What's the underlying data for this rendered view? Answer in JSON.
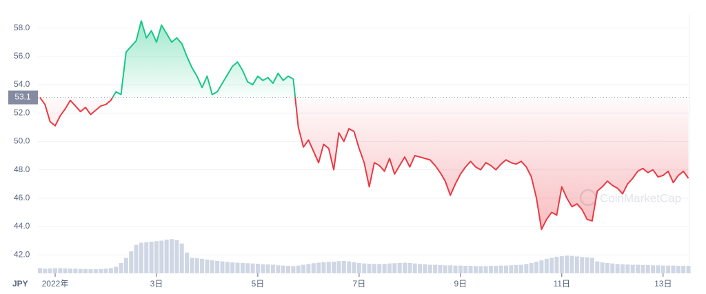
{
  "chart_data": {
    "type": "line",
    "currency": "JPY",
    "watermark": "CoinMarketCap",
    "baseline": 53.1,
    "xlim": [
      0.66,
      13.52
    ],
    "xticks": [
      {
        "value": 1,
        "label": "2022年"
      },
      {
        "value": 3,
        "label": "3日"
      },
      {
        "value": 5,
        "label": "5日"
      },
      {
        "value": 7,
        "label": "7日"
      },
      {
        "value": 9,
        "label": "9日"
      },
      {
        "value": 11,
        "label": "11日"
      },
      {
        "value": 13,
        "label": "13日"
      }
    ],
    "ylim": [
      40.7,
      59
    ],
    "yticks": [
      {
        "value": 42,
        "label": "42.0"
      },
      {
        "value": 44,
        "label": "44.0"
      },
      {
        "value": 46,
        "label": "46.0"
      },
      {
        "value": 48,
        "label": "48.0"
      },
      {
        "value": 50,
        "label": "50.0"
      },
      {
        "value": 52,
        "label": "52.0"
      },
      {
        "value": 54,
        "label": "54.0"
      },
      {
        "value": 56,
        "label": "56.0"
      },
      {
        "value": 58,
        "label": "58.0"
      }
    ],
    "y2lim": [
      0,
      100
    ],
    "grid": true,
    "x": [
      0.7,
      0.8,
      0.9,
      1.0,
      1.1,
      1.2,
      1.3,
      1.4,
      1.5,
      1.6,
      1.7,
      1.8,
      1.9,
      2.0,
      2.1,
      2.2,
      2.3,
      2.4,
      2.5,
      2.6,
      2.7,
      2.8,
      2.9,
      3.0,
      3.1,
      3.2,
      3.3,
      3.4,
      3.5,
      3.6,
      3.7,
      3.8,
      3.9,
      4.0,
      4.1,
      4.2,
      4.3,
      4.4,
      4.5,
      4.6,
      4.7,
      4.8,
      4.9,
      5.0,
      5.1,
      5.2,
      5.3,
      5.4,
      5.5,
      5.6,
      5.7,
      5.8,
      5.9,
      6.0,
      6.1,
      6.2,
      6.3,
      6.4,
      6.5,
      6.6,
      6.7,
      6.8,
      6.9,
      7.0,
      7.1,
      7.2,
      7.3,
      7.4,
      7.5,
      7.6,
      7.7,
      7.8,
      7.9,
      8.0,
      8.1,
      8.2,
      8.3,
      8.4,
      8.5,
      8.6,
      8.7,
      8.8,
      8.9,
      9.0,
      9.1,
      9.2,
      9.3,
      9.4,
      9.5,
      9.6,
      9.7,
      9.8,
      9.9,
      10.0,
      10.1,
      10.2,
      10.3,
      10.4,
      10.5,
      10.6,
      10.7,
      10.8,
      10.9,
      11.0,
      11.1,
      11.2,
      11.3,
      11.4,
      11.5,
      11.6,
      11.7,
      11.8,
      11.9,
      12.0,
      12.1,
      12.2,
      12.3,
      12.4,
      12.5,
      12.6,
      12.7,
      12.8,
      12.9,
      13.0,
      13.1,
      13.2,
      13.3,
      13.4,
      13.5
    ],
    "series": [
      {
        "color_up": "#16c784",
        "color_down": "#ea3943",
        "values": [
          53.1,
          52.6,
          51.4,
          51.1,
          51.8,
          52.3,
          52.9,
          52.5,
          52.1,
          52.4,
          51.9,
          52.2,
          52.5,
          52.6,
          52.9,
          53.5,
          53.3,
          56.3,
          56.7,
          57.1,
          58.5,
          57.3,
          57.8,
          57.0,
          58.2,
          57.6,
          57.0,
          57.3,
          56.9,
          56.0,
          55.2,
          54.6,
          53.8,
          54.6,
          53.3,
          53.5,
          54.1,
          54.7,
          55.3,
          55.6,
          55.0,
          54.2,
          54.0,
          54.6,
          54.3,
          54.5,
          54.1,
          54.8,
          54.3,
          54.6,
          54.4,
          51.0,
          49.6,
          50.1,
          49.3,
          48.5,
          49.8,
          49.5,
          48.0,
          50.6,
          50.0,
          50.9,
          50.7,
          49.5,
          48.5,
          46.8,
          48.5,
          48.3,
          47.9,
          48.8,
          47.7,
          48.3,
          48.9,
          48.2,
          49.0,
          48.9,
          48.8,
          48.7,
          48.3,
          47.8,
          47.2,
          46.2,
          47.0,
          47.7,
          48.2,
          48.6,
          48.2,
          48.0,
          48.5,
          48.3,
          48.0,
          48.4,
          48.7,
          48.5,
          48.4,
          48.6,
          48.2,
          47.5,
          46.0,
          43.8,
          44.5,
          45.0,
          44.8,
          46.8,
          46.0,
          45.4,
          45.6,
          45.2,
          44.5,
          44.4,
          46.5,
          46.8,
          47.2,
          46.9,
          46.7,
          46.3,
          47.0,
          47.4,
          47.9,
          48.1,
          47.8,
          48.0,
          47.5,
          47.6,
          47.9,
          47.1,
          47.6,
          47.9,
          47.4
        ]
      },
      {
        "type": "bar",
        "axis": "y2",
        "color": "#cfd6e4",
        "values": [
          2.0,
          1.8,
          1.9,
          2.0,
          2.0,
          1.9,
          1.8,
          1.8,
          1.7,
          1.7,
          1.6,
          1.6,
          1.7,
          1.8,
          2.0,
          2.5,
          4.0,
          6.0,
          8.5,
          11.0,
          11.8,
          12.0,
          12.2,
          12.4,
          12.6,
          13.0,
          13.2,
          12.8,
          11.5,
          8.0,
          6.0,
          5.8,
          5.6,
          5.3,
          5.0,
          4.8,
          4.6,
          4.4,
          4.2,
          4.1,
          4.0,
          3.9,
          3.8,
          3.7,
          3.5,
          3.4,
          3.3,
          3.1,
          3.0,
          2.9,
          2.8,
          3.0,
          3.3,
          3.6,
          3.9,
          4.1,
          4.3,
          4.4,
          4.5,
          4.7,
          4.8,
          4.6,
          4.3,
          4.0,
          3.8,
          3.7,
          3.6,
          3.6,
          3.7,
          3.8,
          3.9,
          4.0,
          4.1,
          4.0,
          3.8,
          3.6,
          3.5,
          3.3,
          3.3,
          3.2,
          3.1,
          3.1,
          3.0,
          3.0,
          2.9,
          2.9,
          2.8,
          2.8,
          2.8,
          2.9,
          2.9,
          3.0,
          3.0,
          3.1,
          3.2,
          3.3,
          3.6,
          4.0,
          4.5,
          5.0,
          5.6,
          6.0,
          6.4,
          6.6,
          6.8,
          6.7,
          6.5,
          6.3,
          6.2,
          6.0,
          4.6,
          4.2,
          4.0,
          3.8,
          3.6,
          3.5,
          3.4,
          3.3,
          3.3,
          3.2,
          3.2,
          3.1,
          3.1,
          3.0,
          3.0,
          3.0,
          2.9,
          2.9,
          2.9
        ]
      }
    ]
  }
}
